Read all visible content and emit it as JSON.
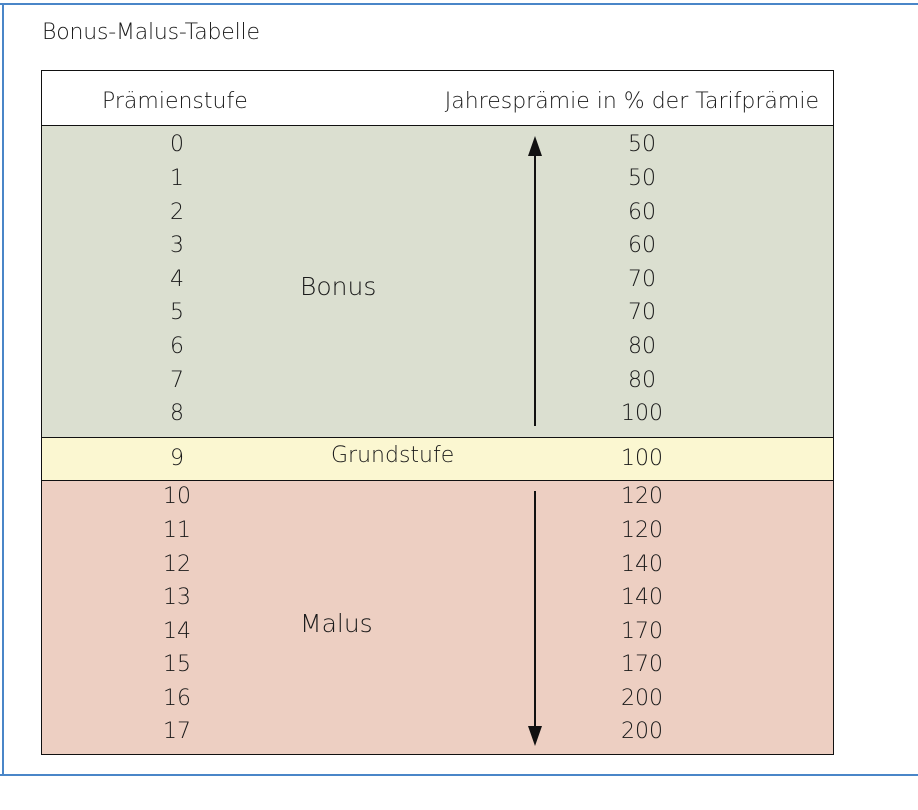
{
  "title": "Bonus-Malus-Tabelle",
  "header": {
    "col_stufe": "Prämienstufe",
    "col_pct": "Jahresprämie in % der Tarifprämie"
  },
  "bonus": {
    "label": "Bonus",
    "rows": [
      {
        "stufe": "0",
        "pct": "50"
      },
      {
        "stufe": "1",
        "pct": "50"
      },
      {
        "stufe": "2",
        "pct": "60"
      },
      {
        "stufe": "3",
        "pct": "60"
      },
      {
        "stufe": "4",
        "pct": "70"
      },
      {
        "stufe": "5",
        "pct": "70"
      },
      {
        "stufe": "6",
        "pct": "80"
      },
      {
        "stufe": "7",
        "pct": "80"
      },
      {
        "stufe": "8",
        "pct": "100"
      }
    ]
  },
  "grund": {
    "stufe": "9",
    "label": "Grundstufe",
    "pct": "100"
  },
  "malus": {
    "label": "Malus",
    "rows": [
      {
        "stufe": "10",
        "pct": "120"
      },
      {
        "stufe": "11",
        "pct": "120"
      },
      {
        "stufe": "12",
        "pct": "140"
      },
      {
        "stufe": "13",
        "pct": "140"
      },
      {
        "stufe": "14",
        "pct": "170"
      },
      {
        "stufe": "15",
        "pct": "170"
      },
      {
        "stufe": "16",
        "pct": "200"
      },
      {
        "stufe": "17",
        "pct": "200"
      }
    ]
  },
  "colors": {
    "frame": "#4a86c8",
    "bonus_band": "#dbdfd0",
    "grund_band": "#fbf7d1",
    "malus_band": "#edcfc2"
  }
}
